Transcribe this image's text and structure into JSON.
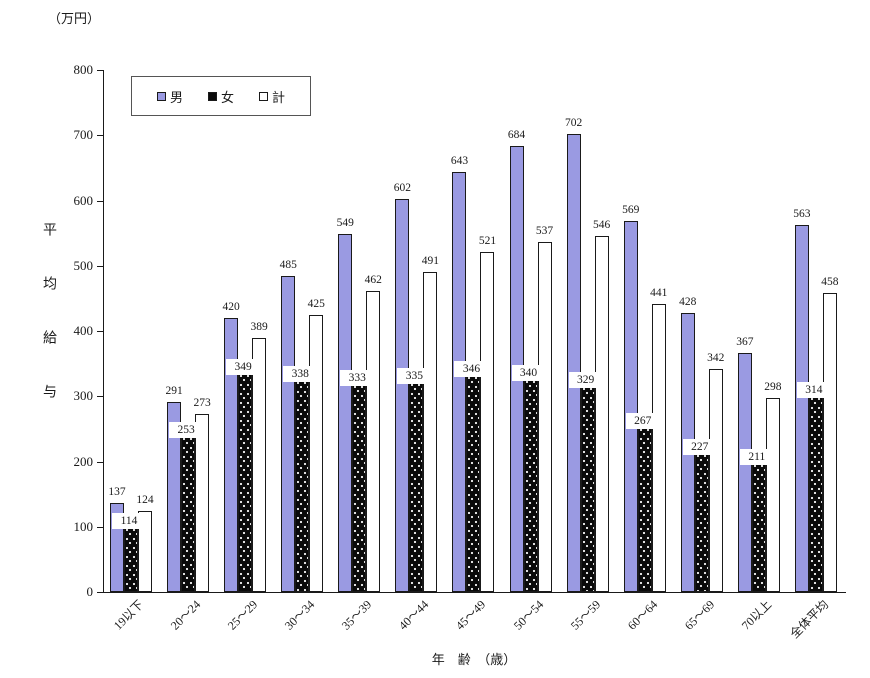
{
  "unit_label": "（万円）",
  "y_axis_title": "平均給与",
  "x_axis_title": "年　齢　（歳）",
  "chart_data": {
    "type": "bar",
    "title": "",
    "xlabel": "年齢（歳）",
    "ylabel": "平均給与（万円）",
    "ylim": [
      0,
      800
    ],
    "ytick_step": 100,
    "grid": false,
    "legend_position": "top-left-inside",
    "categories": [
      "19以下",
      "20～24",
      "25～29",
      "30～34",
      "35～39",
      "40～44",
      "45～49",
      "50～54",
      "55～59",
      "60～64",
      "65～69",
      "70以上",
      "全体平均"
    ],
    "series": [
      {
        "name": "男",
        "color": "#9a9ae2",
        "pattern": "solid",
        "values": [
          137,
          291,
          420,
          485,
          549,
          602,
          643,
          684,
          702,
          569,
          428,
          367,
          563
        ]
      },
      {
        "name": "女",
        "color": "#0a0a0a",
        "pattern": "white-dots",
        "values": [
          114,
          253,
          349,
          338,
          333,
          335,
          346,
          340,
          329,
          267,
          227,
          211,
          314
        ]
      },
      {
        "name": "計",
        "color": "#ffffff",
        "pattern": "none",
        "values": [
          124,
          273,
          389,
          425,
          462,
          491,
          521,
          537,
          546,
          441,
          342,
          298,
          458
        ]
      }
    ]
  }
}
